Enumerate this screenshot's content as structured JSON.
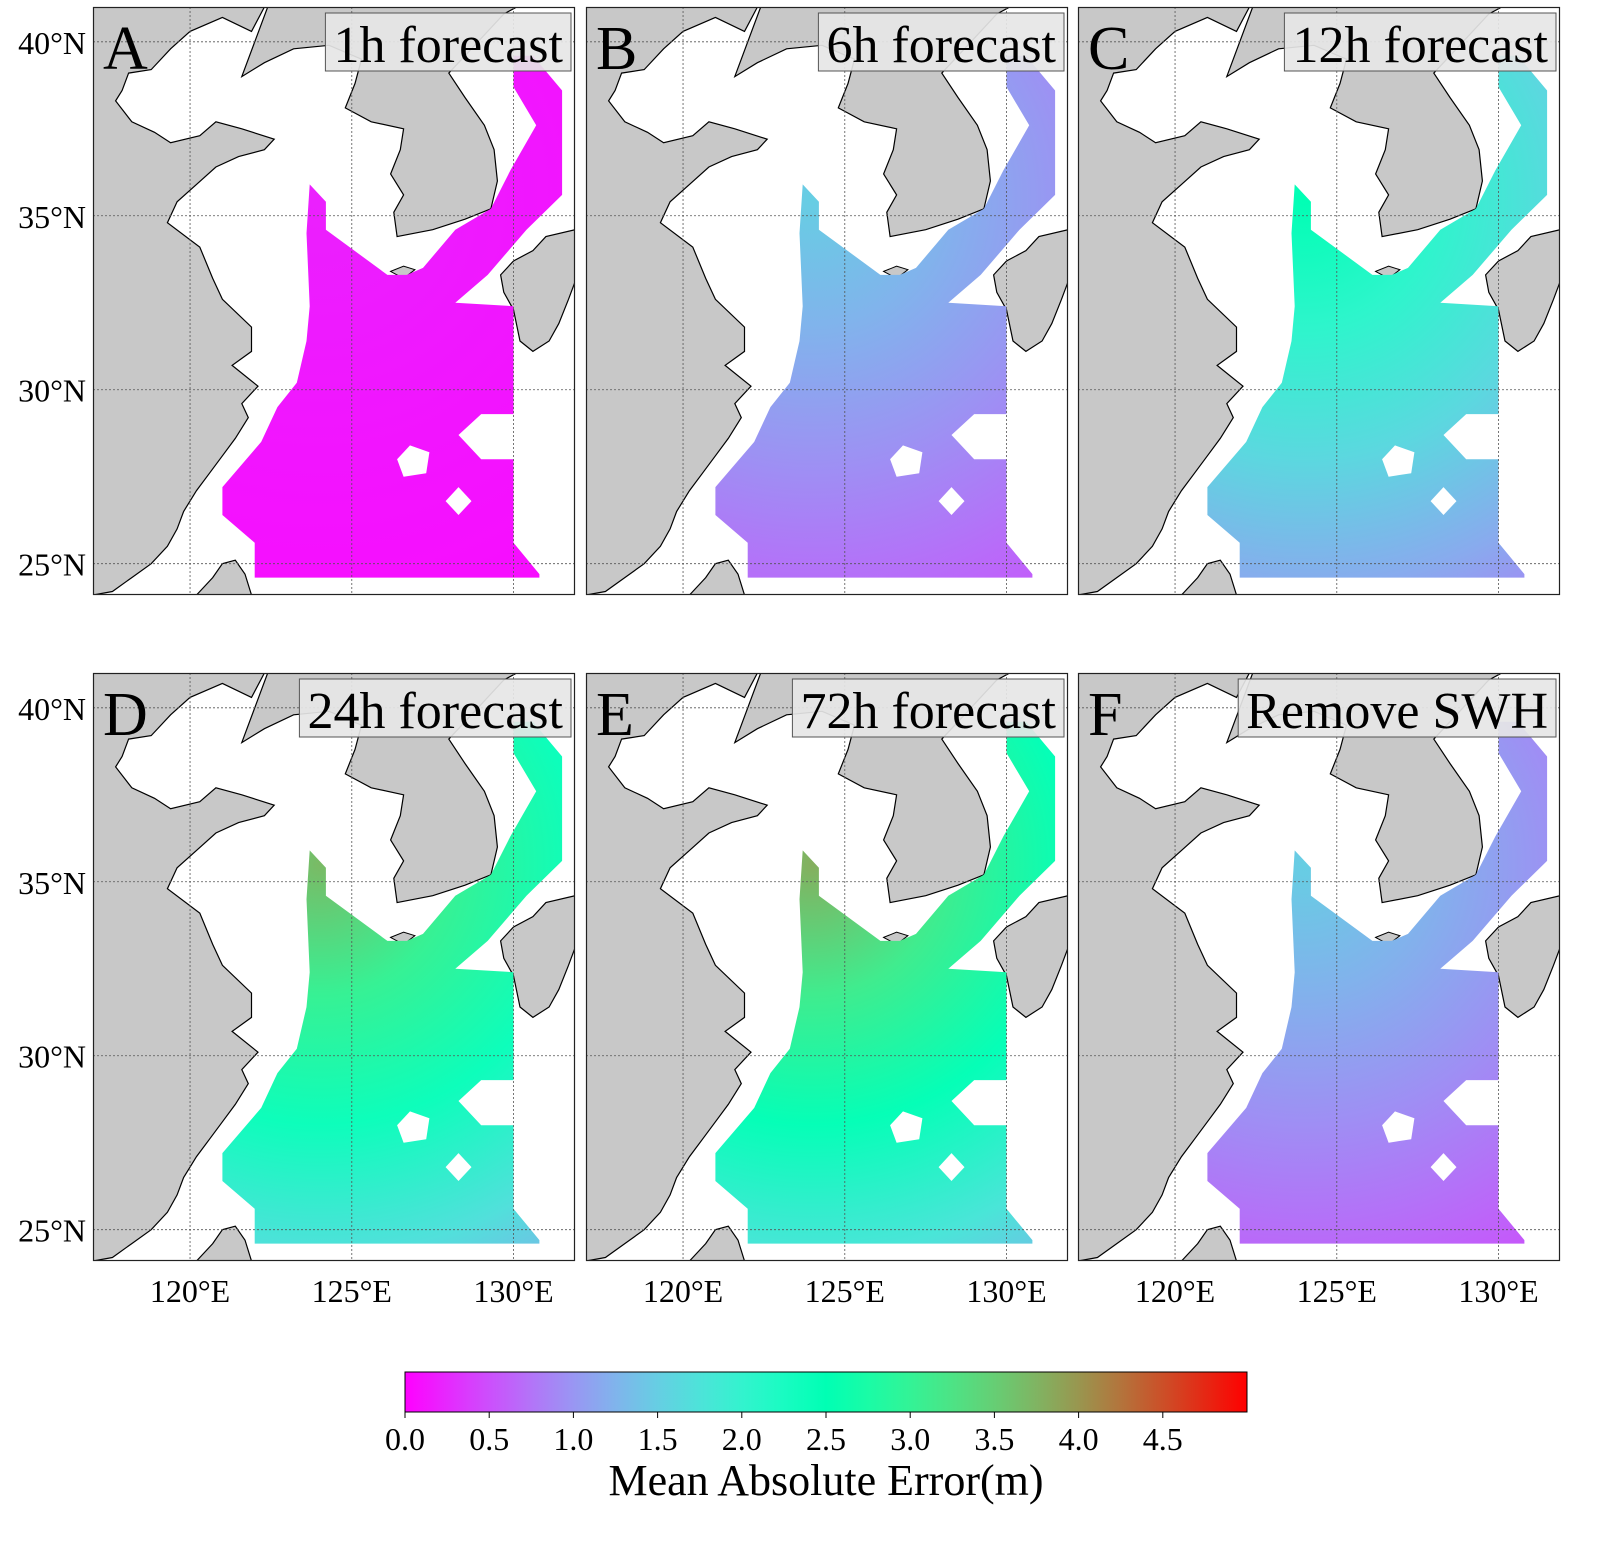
{
  "figure": {
    "panels": [
      {
        "letter": "A",
        "title": "1h forecast"
      },
      {
        "letter": "B",
        "title": "6h forecast"
      },
      {
        "letter": "C",
        "title": "12h forecast"
      },
      {
        "letter": "D",
        "title": "24h forecast"
      },
      {
        "letter": "E",
        "title": "72h forecast"
      },
      {
        "letter": "F",
        "title": "Remove SWH"
      }
    ],
    "lat_labels": [
      "40°N",
      "35°N",
      "30°N",
      "25°N"
    ],
    "lon_labels": [
      "120°E",
      "125°E",
      "130°E"
    ],
    "colorbar": {
      "label": "Mean Absolute Error(m)",
      "ticks": [
        "0.0",
        "0.5",
        "1.0",
        "1.5",
        "2.0",
        "2.5",
        "3.0",
        "3.5",
        "4.0",
        "4.5"
      ],
      "min": 0.0,
      "max": 5.0,
      "colormap": "rainbow"
    }
  },
  "chart_data": {
    "type": "heatmap",
    "description_of_axes": "longitude-latitude map",
    "lon_ticks": [
      120,
      125,
      130
    ],
    "lat_ticks": [
      25,
      30,
      35,
      40
    ],
    "lon_range": [
      117,
      131.9
    ],
    "lat_range": [
      24.1,
      41
    ],
    "value_range": [
      0.0,
      5.0
    ],
    "panels": [
      {
        "letter": "A",
        "title": "1h forecast",
        "typical_mae": 0.1,
        "max_mae": 0.2
      },
      {
        "letter": "B",
        "title": "6h forecast",
        "typical_mae": 0.8,
        "max_mae": 1.5
      },
      {
        "letter": "C",
        "title": "12h forecast",
        "typical_mae": 1.3,
        "max_mae": 2.5
      },
      {
        "letter": "D",
        "title": "24h forecast",
        "typical_mae": 1.9,
        "max_mae": 3.7
      },
      {
        "letter": "E",
        "title": "72h forecast",
        "typical_mae": 2.0,
        "max_mae": 3.8
      },
      {
        "letter": "F",
        "title": "Remove SWH",
        "typical_mae": 0.7,
        "max_mae": 1.5
      }
    ]
  },
  "colors": {
    "land": "#c8c8c8",
    "sea": "#ffffff",
    "coast": "#000000",
    "gridline": "#555555"
  }
}
